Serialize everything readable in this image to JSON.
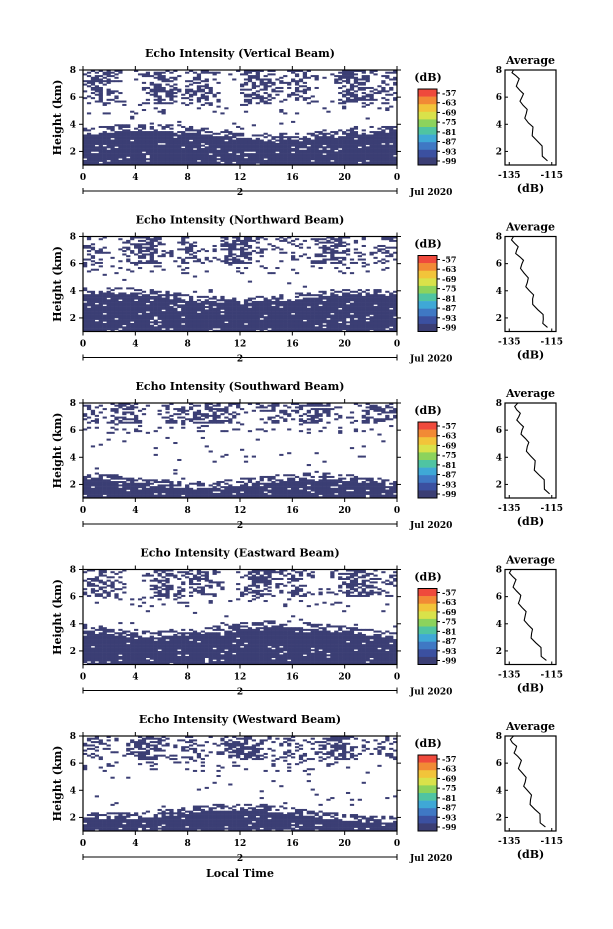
{
  "chart_data": [
    {
      "type": "heatmap",
      "title": "Echo Intensity (Vertical Beam)",
      "ylabel": "Height (km)",
      "xticks": [
        "0",
        "4",
        "8",
        "12",
        "16",
        "20",
        "0"
      ],
      "xdate_day": "2",
      "xdate_month": "Jul 2020",
      "yticks": [
        "2",
        "4",
        "6",
        "8"
      ],
      "ylim": [
        1,
        8
      ],
      "xlim": [
        0,
        24
      ],
      "colorbar_unit": "(dB)",
      "colorbar_ticks": [
        "-57",
        "-63",
        "-69",
        "-75",
        "-81",
        "-87",
        "-93",
        "-99"
      ],
      "lower_layer_top_km": 3.5,
      "upper_cloud_range_km": [
        5.5,
        8
      ],
      "profile": {
        "title": "Average",
        "xlabel": "(dB)",
        "xticks": [
          "-135",
          "-115"
        ],
        "yticks": [
          "2",
          "4",
          "6",
          "8"
        ],
        "x": [
          -133,
          -132,
          -131,
          -130,
          -129,
          -128.5,
          -127,
          -126,
          -124,
          -122,
          -119.5,
          -117
        ],
        "y": [
          8,
          7.6,
          7.1,
          6.5,
          6,
          5.4,
          4.8,
          4.1,
          3.5,
          2.8,
          2.0,
          1.3
        ]
      }
    },
    {
      "type": "heatmap",
      "title": "Echo Intensity (Northward Beam)",
      "ylabel": "Height (km)",
      "xticks": [
        "0",
        "4",
        "8",
        "12",
        "16",
        "20",
        "0"
      ],
      "xdate_day": "2",
      "xdate_month": "Jul 2020",
      "yticks": [
        "2",
        "4",
        "6",
        "8"
      ],
      "ylim": [
        1,
        8
      ],
      "xlim": [
        0,
        24
      ],
      "colorbar_unit": "(dB)",
      "colorbar_ticks": [
        "-57",
        "-63",
        "-69",
        "-75",
        "-81",
        "-87",
        "-93",
        "-99"
      ],
      "lower_layer_top_km": 3.7,
      "upper_cloud_range_km": [
        6,
        8
      ],
      "profile": {
        "title": "Average",
        "xlabel": "(dB)",
        "xticks": [
          "-135",
          "-115"
        ],
        "yticks": [
          "2",
          "4",
          "6",
          "8"
        ],
        "x": [
          -133,
          -132.5,
          -131.5,
          -130,
          -129,
          -128,
          -126.5,
          -125.5,
          -124,
          -121.5,
          -119,
          -117
        ],
        "y": [
          8,
          7.5,
          7,
          6.5,
          6,
          5.3,
          4.6,
          4.0,
          3.4,
          2.6,
          1.9,
          1.3
        ]
      }
    },
    {
      "type": "heatmap",
      "title": "Echo Intensity (Southward Beam)",
      "ylabel": "Height (km)",
      "xticks": [
        "0",
        "4",
        "8",
        "12",
        "16",
        "20",
        "0"
      ],
      "xdate_day": "2",
      "xdate_month": "Jul 2020",
      "yticks": [
        "2",
        "4",
        "6",
        "8"
      ],
      "ylim": [
        1,
        8
      ],
      "xlim": [
        0,
        24
      ],
      "colorbar_unit": "(dB)",
      "colorbar_ticks": [
        "-57",
        "-63",
        "-69",
        "-75",
        "-81",
        "-87",
        "-93",
        "-99"
      ],
      "lower_layer_top_km": 2.4,
      "upper_cloud_range_km": [
        6.5,
        8
      ],
      "profile": {
        "title": "Average",
        "xlabel": "(dB)",
        "xticks": [
          "-135",
          "-115"
        ],
        "yticks": [
          "2",
          "4",
          "6",
          "8"
        ],
        "x": [
          -131,
          -131.5,
          -130.5,
          -130,
          -129,
          -127.5,
          -126.5,
          -125,
          -123,
          -121,
          -118.5,
          -116
        ],
        "y": [
          8,
          7.5,
          7,
          6.5,
          6,
          5.4,
          4.8,
          4.1,
          3.4,
          2.7,
          2.0,
          1.3
        ]
      }
    },
    {
      "type": "heatmap",
      "title": "Echo Intensity (Eastward Beam)",
      "ylabel": "Height (km)",
      "xticks": [
        "0",
        "4",
        "8",
        "12",
        "16",
        "20",
        "0"
      ],
      "xdate_day": "2",
      "xdate_month": "Jul 2020",
      "yticks": [
        "2",
        "4",
        "6",
        "8"
      ],
      "ylim": [
        1,
        8
      ],
      "xlim": [
        0,
        24
      ],
      "colorbar_unit": "(dB)",
      "colorbar_ticks": [
        "-57",
        "-63",
        "-69",
        "-75",
        "-81",
        "-87",
        "-93",
        "-99"
      ],
      "lower_layer_top_km": 3.7,
      "upper_cloud_range_km": [
        6,
        8
      ],
      "profile": {
        "title": "Average",
        "xlabel": "(dB)",
        "xticks": [
          "-135",
          "-115"
        ],
        "yticks": [
          "2",
          "4",
          "6",
          "8"
        ],
        "x": [
          -134,
          -133.5,
          -132.5,
          -131.5,
          -130,
          -129,
          -127.5,
          -126,
          -124.5,
          -122.5,
          -120,
          -117.5
        ],
        "y": [
          8,
          7.5,
          7,
          6.4,
          5.8,
          5.2,
          4.6,
          3.9,
          3.3,
          2.6,
          1.9,
          1.3
        ]
      }
    },
    {
      "type": "heatmap",
      "title": "Echo Intensity (Westward Beam)",
      "ylabel": "Height (km)",
      "xticks": [
        "0",
        "4",
        "8",
        "12",
        "16",
        "20",
        "0"
      ],
      "xdate_day": "2",
      "xdate_month": "Jul 2020",
      "xlabel": "Local Time",
      "yticks": [
        "2",
        "4",
        "6",
        "8"
      ],
      "ylim": [
        1,
        8
      ],
      "xlim": [
        0,
        24
      ],
      "colorbar_unit": "(dB)",
      "colorbar_ticks": [
        "-57",
        "-63",
        "-69",
        "-75",
        "-81",
        "-87",
        "-93",
        "-99"
      ],
      "lower_layer_top_km": 2.5,
      "upper_cloud_range_km": [
        6.2,
        8
      ],
      "profile": {
        "title": "Average",
        "xlabel": "(dB)",
        "xticks": [
          "-135",
          "-115"
        ],
        "yticks": [
          "2",
          "4",
          "6",
          "8"
        ],
        "x": [
          -133,
          -133.5,
          -132,
          -131,
          -130,
          -129,
          -127.5,
          -126.5,
          -125,
          -123,
          -120.5,
          -118
        ],
        "y": [
          8,
          7.5,
          7,
          6.5,
          5.9,
          5.3,
          4.6,
          4.0,
          3.3,
          2.6,
          1.9,
          1.3
        ]
      }
    }
  ],
  "colors": {
    "dominant": "#3b3e74",
    "colorbar": [
      "#ef4a3c",
      "#f28a35",
      "#f2c43a",
      "#d9e24a",
      "#8cd35c",
      "#4fc4a2",
      "#3fa8d6",
      "#3f78c4",
      "#3b50a0",
      "#3b3e74"
    ]
  }
}
